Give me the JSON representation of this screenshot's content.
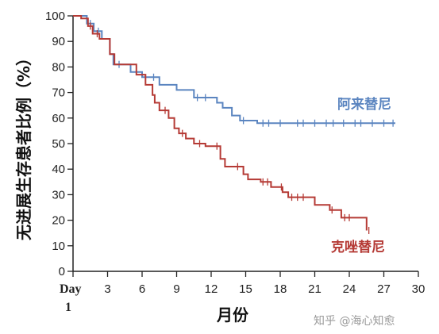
{
  "chart_data": {
    "type": "line",
    "title": "",
    "xlabel": "月份",
    "ylabel": "无进展生存患者比例（%）",
    "xlim": [
      0,
      30
    ],
    "ylim": [
      0,
      100
    ],
    "x_ticks": [
      {
        "value": 0,
        "label": "Day"
      },
      {
        "value": 3,
        "label": "3"
      },
      {
        "value": 6,
        "label": "6"
      },
      {
        "value": 9,
        "label": "9"
      },
      {
        "value": 12,
        "label": "12"
      },
      {
        "value": 15,
        "label": "15"
      },
      {
        "value": 18,
        "label": "18"
      },
      {
        "value": 21,
        "label": "21"
      },
      {
        "value": 24,
        "label": "24"
      },
      {
        "value": 27,
        "label": "27"
      },
      {
        "value": 30,
        "label": "30"
      }
    ],
    "x_tick_sublabel": "1",
    "y_ticks": [
      0,
      10,
      20,
      30,
      40,
      50,
      60,
      70,
      80,
      90,
      100
    ],
    "grid": false,
    "series": [
      {
        "name": "阿来替尼",
        "color": "#5b85c0",
        "x": [
          0,
          1.2,
          1.2,
          1.8,
          1.8,
          2.5,
          2.5,
          3.2,
          3.2,
          3.5,
          3.5,
          5.0,
          5.0,
          6.0,
          6.0,
          7.5,
          7.5,
          9.0,
          9.0,
          10.5,
          10.5,
          12.5,
          12.5,
          13.0,
          13.0,
          13.8,
          13.8,
          14.5,
          14.5,
          16.0,
          16.0,
          28.0
        ],
        "y": [
          100,
          100,
          97,
          97,
          94,
          94,
          91,
          91,
          85,
          85,
          81,
          81,
          78,
          78,
          76,
          76,
          73,
          73,
          71,
          71,
          68,
          68,
          66,
          66,
          64,
          64,
          61,
          61,
          59,
          59,
          58,
          58
        ],
        "censor_x": [
          1.5,
          2.2,
          4.0,
          7.0,
          10.8,
          11.5,
          14.8,
          16.5,
          17.0,
          18.0,
          19.5,
          20.0,
          21.0,
          22.0,
          22.6,
          23.5,
          24.5,
          25.0,
          26.0,
          27.0,
          27.8
        ]
      },
      {
        "name": "克唑替尼",
        "color": "#b53a35",
        "x": [
          0,
          0.7,
          0.7,
          1.3,
          1.3,
          1.7,
          1.7,
          2.3,
          2.3,
          3.2,
          3.2,
          3.6,
          3.6,
          5.5,
          5.5,
          6.3,
          6.3,
          6.9,
          6.9,
          7.1,
          7.1,
          7.5,
          7.5,
          8.3,
          8.3,
          8.8,
          8.8,
          9.2,
          9.2,
          9.8,
          9.8,
          10.5,
          10.5,
          11.5,
          11.5,
          12.8,
          12.8,
          13.2,
          13.2,
          14.8,
          14.8,
          15.2,
          15.2,
          16.3,
          16.3,
          17.2,
          17.2,
          18.2,
          18.2,
          18.7,
          18.7,
          21.0,
          21.0,
          22.3,
          22.3,
          23.3,
          23.3,
          25.5,
          25.5
        ],
        "y": [
          100,
          100,
          99,
          99,
          96,
          96,
          93,
          93,
          91,
          91,
          85,
          85,
          81,
          81,
          77,
          77,
          73,
          73,
          69,
          69,
          66,
          66,
          63,
          63,
          60,
          60,
          56,
          56,
          54,
          54,
          52,
          52,
          50,
          50,
          49,
          49,
          44,
          44,
          41,
          41,
          38,
          38,
          36,
          36,
          35,
          35,
          33,
          33,
          31,
          31,
          29,
          29,
          26,
          26,
          24,
          24,
          21,
          21,
          16
        ],
        "censor_x": [
          1.5,
          2.1,
          8.0,
          9.5,
          11.0,
          12.5,
          14.3,
          16.5,
          16.9,
          18.1,
          19.0,
          19.5,
          20.0,
          22.5,
          23.6,
          24.0,
          25.7
        ]
      }
    ]
  },
  "watermark": "知乎 @海心知愈"
}
